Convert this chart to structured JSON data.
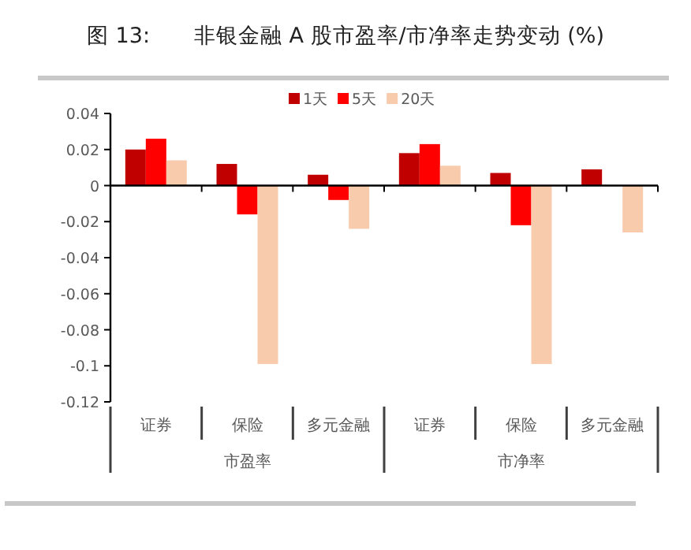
{
  "chart_data": {
    "type": "bar",
    "title": "图 13:　　非银金融 A 股市盈率/市净率走势变动 (%)",
    "categories": [
      "证券",
      "保险",
      "多元金融",
      "证券",
      "保险",
      "多元金融"
    ],
    "series": [
      {
        "name": "1天",
        "color": "#c00000",
        "values": [
          0.02,
          0.012,
          0.006,
          0.018,
          0.007,
          0.009
        ]
      },
      {
        "name": "5天",
        "color": "#ff0000",
        "values": [
          0.026,
          -0.016,
          -0.008,
          0.023,
          -0.022,
          0
        ]
      },
      {
        "name": "20天",
        "color": "#f8cbad",
        "values": [
          0.014,
          -0.099,
          -0.024,
          0.011,
          -0.099,
          -0.026
        ]
      }
    ],
    "annotations": [
      "市盈率",
      "市净率"
    ],
    "ylim": [
      -0.12,
      0.04
    ],
    "yticks": [
      0.04,
      0.02,
      0,
      -0.02,
      -0.04,
      -0.06,
      -0.08,
      -0.1,
      -0.12
    ],
    "legend": "top"
  }
}
